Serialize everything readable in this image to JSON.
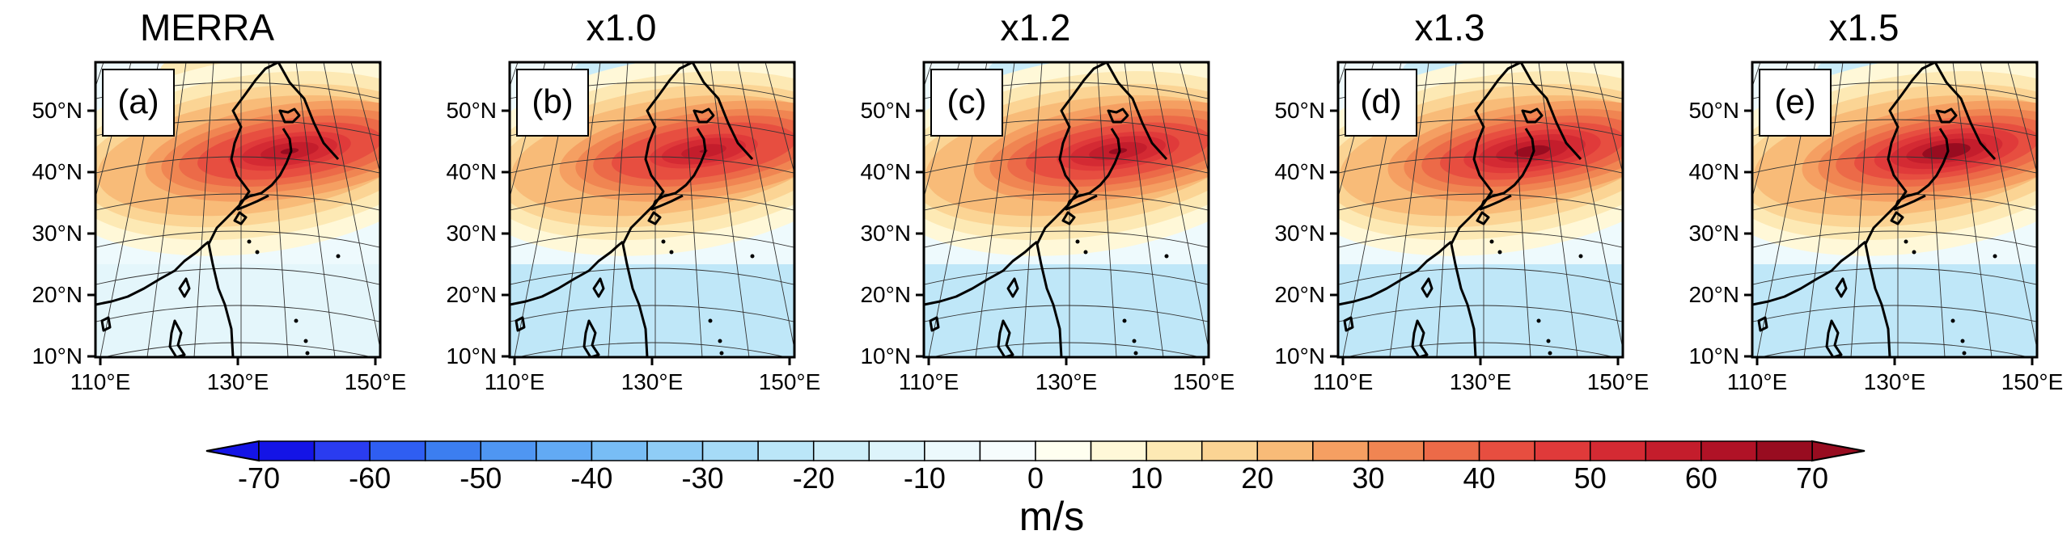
{
  "panels": [
    {
      "title": "MERRA",
      "letter": "(a)",
      "jet_strength": 0.85,
      "southern_easterlies": 0.15
    },
    {
      "title": "x1.0",
      "letter": "(b)",
      "jet_strength": 0.75,
      "southern_easterlies": 0.45
    },
    {
      "title": "x1.2",
      "letter": "(c)",
      "jet_strength": 0.85,
      "southern_easterlies": 0.5
    },
    {
      "title": "x1.3",
      "letter": "(d)",
      "jet_strength": 0.95,
      "southern_easterlies": 0.6
    },
    {
      "title": "x1.5",
      "letter": "(e)",
      "jet_strength": 1.0,
      "southern_easterlies": 0.5
    }
  ],
  "map_axes": {
    "lat_labels": [
      "50°N",
      "40°N",
      "30°N",
      "20°N",
      "10°N"
    ],
    "lon_labels": [
      "110°E",
      "130°E",
      "150°E"
    ]
  },
  "colorbar": {
    "tick_labels": [
      "-70",
      "-60",
      "-50",
      "-40",
      "-30",
      "-20",
      "-10",
      "0",
      "10",
      "20",
      "30",
      "40",
      "50",
      "60",
      "70"
    ],
    "unit": "m/s",
    "min": -70,
    "max": 70,
    "step": 5,
    "colors": [
      "#1414e6",
      "#2a3cf0",
      "#2f5ef2",
      "#3c7ef0",
      "#4f96f2",
      "#62aaf4",
      "#78bdf5",
      "#8fcdf6",
      "#a6dbf7",
      "#bbe6f8",
      "#cdeef9",
      "#ddf4fb",
      "#ecf9fc",
      "#f6fcfd",
      "#fffff0",
      "#fff8d8",
      "#fde9b4",
      "#fbd494",
      "#f8bb78",
      "#f59f62",
      "#f08552",
      "#ec6a48",
      "#e74e40",
      "#e03a3a",
      "#d42a33",
      "#c41d2c",
      "#b01226",
      "#980c20"
    ]
  }
}
